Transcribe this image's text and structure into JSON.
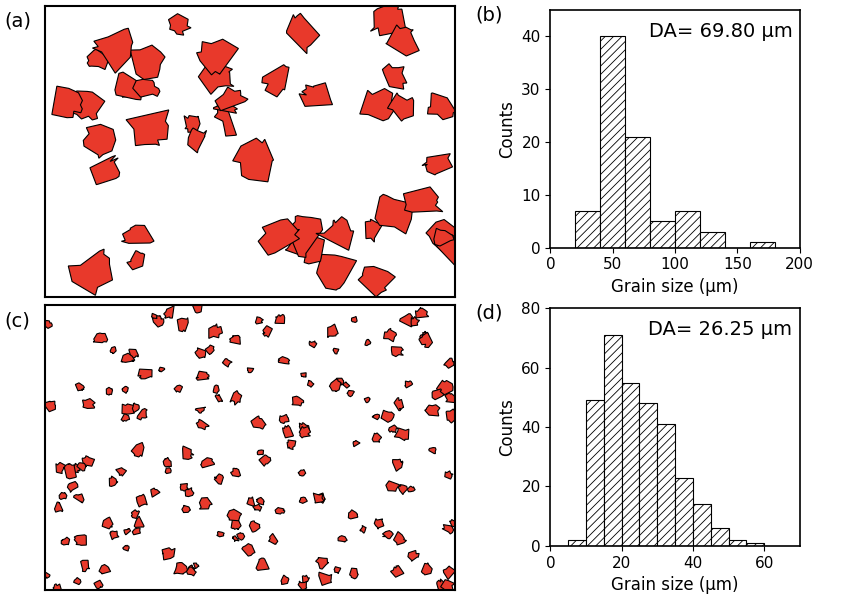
{
  "images": [
    {
      "label": "(a)"
    },
    {
      "label": "(c)"
    }
  ],
  "chart_data": [
    {
      "type": "histogram",
      "title": "(b)",
      "annotations": [
        "DA= 69.80 µm"
      ],
      "x_label": "Grain size (µm)",
      "y_label": "Counts",
      "bins": [
        20,
        40,
        60,
        80,
        100,
        120,
        140,
        160,
        180
      ],
      "counts": [
        7,
        40,
        21,
        5,
        7,
        3,
        0,
        1
      ],
      "color": "#ffffff",
      "xlim": [
        0,
        200
      ],
      "xticks": [
        0,
        50,
        100,
        150,
        200
      ],
      "ylim": [
        0,
        45
      ],
      "yticks": [
        0,
        10,
        20,
        30,
        40
      ]
    },
    {
      "type": "histogram",
      "title": "(d)",
      "annotations": [
        "DA= 26.25 µm"
      ],
      "x_label": "Grain size (µm)",
      "y_label": "Counts",
      "bins": [
        5,
        10,
        15,
        20,
        25,
        30,
        35,
        40,
        45,
        50,
        55,
        60
      ],
      "counts": [
        2,
        49,
        71,
        55,
        48,
        41,
        23,
        14,
        6,
        2,
        1
      ],
      "color": "#ffffff",
      "xlim": [
        0,
        70
      ],
      "xticks": [
        0,
        20,
        40,
        60
      ],
      "ylim": [
        0,
        80
      ],
      "yticks": [
        0,
        20,
        40,
        60,
        80
      ]
    }
  ]
}
